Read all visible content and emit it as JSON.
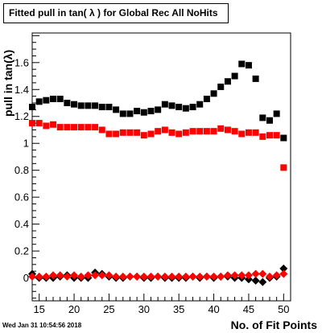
{
  "title": "Fitted pull in tan( λ ) for Global Rec All NoHits",
  "timestamp": "Wed Jan 31 10:54:56 2018",
  "chart_data": {
    "type": "scatter",
    "xlabel": "No. of Fit Points",
    "ylabel": "pull in tan(λ)",
    "xlim": [
      14,
      51
    ],
    "ylim": [
      -0.17,
      1.82
    ],
    "xticks": [
      15,
      20,
      25,
      30,
      35,
      40,
      45,
      50
    ],
    "yticks": [
      0,
      0.2,
      0.4,
      0.6,
      0.8,
      1,
      1.2,
      1.4,
      1.6
    ],
    "ytick_labels": [
      "0",
      "0.2",
      "0.4",
      "0.6",
      "0.8",
      "1",
      "1.2",
      "1.4",
      "1.6"
    ],
    "grid": false,
    "series": [
      {
        "marker": "square",
        "color": "#000000",
        "x": [
          14,
          15,
          16,
          17,
          18,
          19,
          20,
          21,
          22,
          23,
          24,
          25,
          26,
          27,
          28,
          29,
          30,
          31,
          32,
          33,
          34,
          35,
          36,
          37,
          38,
          39,
          40,
          41,
          42,
          43,
          44,
          45,
          46,
          47,
          48,
          49,
          50
        ],
        "y": [
          1.27,
          1.31,
          1.32,
          1.33,
          1.33,
          1.3,
          1.29,
          1.28,
          1.28,
          1.28,
          1.27,
          1.27,
          1.25,
          1.22,
          1.22,
          1.24,
          1.23,
          1.24,
          1.25,
          1.29,
          1.28,
          1.27,
          1.26,
          1.27,
          1.29,
          1.33,
          1.37,
          1.42,
          1.46,
          1.5,
          1.59,
          1.58,
          1.48,
          1.19,
          1.17,
          1.22,
          1.04
        ]
      },
      {
        "marker": "square",
        "color": "#ff0000",
        "x": [
          14,
          15,
          16,
          17,
          18,
          19,
          20,
          21,
          22,
          23,
          24,
          25,
          26,
          27,
          28,
          29,
          30,
          31,
          32,
          33,
          34,
          35,
          36,
          37,
          38,
          39,
          40,
          41,
          42,
          43,
          44,
          45,
          46,
          47,
          48,
          49,
          50
        ],
        "y": [
          1.15,
          1.15,
          1.13,
          1.14,
          1.12,
          1.12,
          1.12,
          1.12,
          1.12,
          1.12,
          1.1,
          1.07,
          1.07,
          1.08,
          1.08,
          1.08,
          1.06,
          1.07,
          1.09,
          1.1,
          1.08,
          1.07,
          1.08,
          1.09,
          1.09,
          1.09,
          1.09,
          1.11,
          1.1,
          1.09,
          1.07,
          1.08,
          1.08,
          1.05,
          1.06,
          1.06,
          0.82
        ]
      },
      {
        "marker": "diamond",
        "color": "#000000",
        "x": [
          14,
          15,
          16,
          17,
          18,
          19,
          20,
          21,
          22,
          23,
          24,
          25,
          26,
          27,
          28,
          29,
          30,
          31,
          32,
          33,
          34,
          35,
          36,
          37,
          38,
          39,
          40,
          41,
          42,
          43,
          44,
          45,
          46,
          47,
          48,
          49,
          50
        ],
        "y": [
          0.03,
          0.0,
          0.0,
          0.0,
          0.01,
          0.02,
          0.0,
          0.0,
          0.0,
          0.04,
          0.03,
          0.01,
          0.0,
          0.0,
          0.01,
          0.01,
          0.0,
          0.0,
          0.01,
          0.0,
          0.0,
          0.0,
          0.0,
          0.01,
          0.0,
          0.01,
          0.0,
          0.01,
          0.01,
          0.0,
          0.0,
          -0.01,
          -0.02,
          -0.03,
          0.0,
          0.01,
          0.07
        ]
      },
      {
        "marker": "diamond",
        "color": "#ff0000",
        "x": [
          14,
          15,
          16,
          17,
          18,
          19,
          20,
          21,
          22,
          23,
          24,
          25,
          26,
          27,
          28,
          29,
          30,
          31,
          32,
          33,
          34,
          35,
          36,
          37,
          38,
          39,
          40,
          41,
          42,
          43,
          44,
          45,
          46,
          47,
          48,
          49,
          50
        ],
        "y": [
          0.01,
          0.01,
          0.01,
          0.02,
          0.02,
          0.01,
          0.02,
          0.01,
          0.02,
          0.02,
          0.02,
          0.02,
          0.01,
          0.01,
          0.01,
          0.01,
          0.01,
          0.01,
          0.01,
          0.01,
          0.01,
          0.01,
          0.01,
          0.01,
          0.01,
          0.01,
          0.01,
          0.01,
          0.02,
          0.02,
          0.02,
          0.02,
          0.03,
          0.03,
          0.01,
          0.02,
          0.03
        ]
      }
    ]
  }
}
